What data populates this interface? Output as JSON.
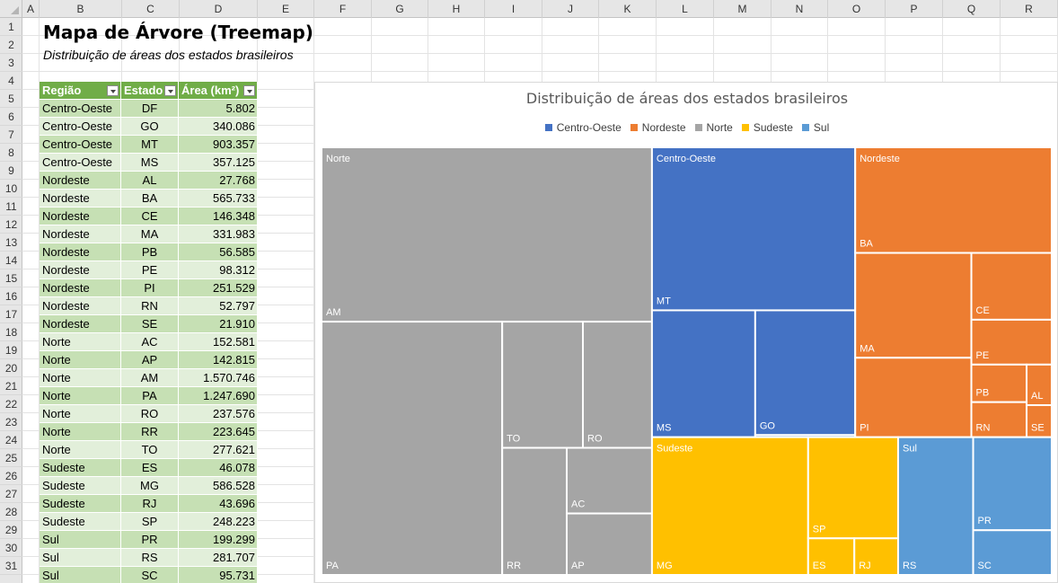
{
  "spreadsheet": {
    "columns": [
      "A",
      "B",
      "C",
      "D",
      "E",
      "F",
      "G",
      "H",
      "I",
      "J",
      "K",
      "L",
      "M",
      "N",
      "O",
      "P",
      "Q",
      "R"
    ],
    "rows": [
      1,
      2,
      3,
      4,
      5,
      6,
      7,
      8,
      9,
      10,
      11,
      12,
      13,
      14,
      15,
      16,
      17,
      18,
      19,
      20,
      21,
      22,
      23,
      24,
      25,
      26,
      27,
      28,
      29,
      30,
      31
    ],
    "title": "Mapa de Árvore (Treemap)",
    "subtitle": "Distribuição de áreas dos estados brasileiros"
  },
  "table": {
    "headers": [
      "Região",
      "Estado",
      "Área (km²)"
    ],
    "rows": [
      [
        "Centro-Oeste",
        "DF",
        "5.802"
      ],
      [
        "Centro-Oeste",
        "GO",
        "340.086"
      ],
      [
        "Centro-Oeste",
        "MT",
        "903.357"
      ],
      [
        "Centro-Oeste",
        "MS",
        "357.125"
      ],
      [
        "Nordeste",
        "AL",
        "27.768"
      ],
      [
        "Nordeste",
        "BA",
        "565.733"
      ],
      [
        "Nordeste",
        "CE",
        "146.348"
      ],
      [
        "Nordeste",
        "MA",
        "331.983"
      ],
      [
        "Nordeste",
        "PB",
        "56.585"
      ],
      [
        "Nordeste",
        "PE",
        "98.312"
      ],
      [
        "Nordeste",
        "PI",
        "251.529"
      ],
      [
        "Nordeste",
        "RN",
        "52.797"
      ],
      [
        "Nordeste",
        "SE",
        "21.910"
      ],
      [
        "Norte",
        "AC",
        "152.581"
      ],
      [
        "Norte",
        "AP",
        "142.815"
      ],
      [
        "Norte",
        "AM",
        "1.570.746"
      ],
      [
        "Norte",
        "PA",
        "1.247.690"
      ],
      [
        "Norte",
        "RO",
        "237.576"
      ],
      [
        "Norte",
        "RR",
        "223.645"
      ],
      [
        "Norte",
        "TO",
        "277.621"
      ],
      [
        "Sudeste",
        "ES",
        "46.078"
      ],
      [
        "Sudeste",
        "MG",
        "586.528"
      ],
      [
        "Sudeste",
        "RJ",
        "43.696"
      ],
      [
        "Sudeste",
        "SP",
        "248.223"
      ],
      [
        "Sul",
        "PR",
        "199.299"
      ],
      [
        "Sul",
        "RS",
        "281.707"
      ],
      [
        "Sul",
        "SC",
        "95.731"
      ]
    ]
  },
  "chart_data": {
    "type": "treemap",
    "title": "Distribuição de áreas dos estados brasileiros",
    "legend_position": "top",
    "groups": [
      {
        "name": "Norte",
        "color": "#a5a5a5",
        "items": [
          {
            "label": "AM",
            "value": 1570746
          },
          {
            "label": "PA",
            "value": 1247690
          },
          {
            "label": "TO",
            "value": 277621
          },
          {
            "label": "RO",
            "value": 237576
          },
          {
            "label": "RR",
            "value": 223645
          },
          {
            "label": "AC",
            "value": 152581
          },
          {
            "label": "AP",
            "value": 142815
          }
        ]
      },
      {
        "name": "Centro-Oeste",
        "color": "#4472c4",
        "items": [
          {
            "label": "MT",
            "value": 903357
          },
          {
            "label": "MS",
            "value": 357125
          },
          {
            "label": "GO",
            "value": 340086
          },
          {
            "label": "DF",
            "value": 5802
          }
        ]
      },
      {
        "name": "Nordeste",
        "color": "#ed7d31",
        "items": [
          {
            "label": "BA",
            "value": 565733
          },
          {
            "label": "MA",
            "value": 331983
          },
          {
            "label": "PI",
            "value": 251529
          },
          {
            "label": "CE",
            "value": 146348
          },
          {
            "label": "PE",
            "value": 98312
          },
          {
            "label": "PB",
            "value": 56585
          },
          {
            "label": "RN",
            "value": 52797
          },
          {
            "label": "AL",
            "value": 27768
          },
          {
            "label": "SE",
            "value": 21910
          }
        ]
      },
      {
        "name": "Sudeste",
        "color": "#ffc000",
        "items": [
          {
            "label": "MG",
            "value": 586528
          },
          {
            "label": "SP",
            "value": 248223
          },
          {
            "label": "ES",
            "value": 46078
          },
          {
            "label": "RJ",
            "value": 43696
          }
        ]
      },
      {
        "name": "Sul",
        "color": "#5b9bd5",
        "items": [
          {
            "label": "RS",
            "value": 281707
          },
          {
            "label": "PR",
            "value": 199299
          },
          {
            "label": "SC",
            "value": 95731
          }
        ]
      }
    ],
    "legend": [
      {
        "name": "Centro-Oeste",
        "color": "#4472c4"
      },
      {
        "name": "Nordeste",
        "color": "#ed7d31"
      },
      {
        "name": "Norte",
        "color": "#a5a5a5"
      },
      {
        "name": "Sudeste",
        "color": "#ffc000"
      },
      {
        "name": "Sul",
        "color": "#5b9bd5"
      }
    ]
  }
}
